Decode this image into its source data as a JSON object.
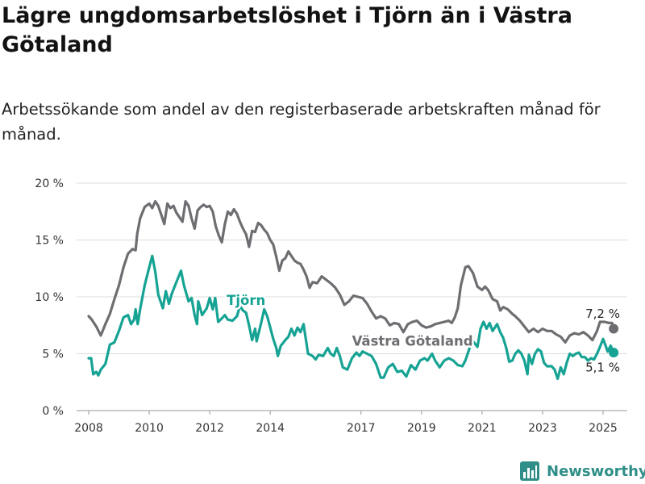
{
  "title": "Lägre ungdomsarbetslöshet i Tjörn än i Västra Götaland",
  "subtitle": "Arbetssökande som andel av den registerbaserade arbetskraften månad för månad.",
  "brand": "Newsworthy",
  "colors": {
    "Tjörn": "#16a394",
    "Västra Götaland": "#6e6e72",
    "grid": "#dcdcdc",
    "brand": "#2f8f88"
  },
  "chart_data": {
    "type": "line",
    "xlim": [
      2007.6,
      2025.8
    ],
    "ylim": [
      0,
      20
    ],
    "x_ticks": [
      2008,
      2010,
      2012,
      2014,
      2017,
      2019,
      2021,
      2023,
      2025
    ],
    "x_tick_labels": [
      "2008",
      "2010",
      "2012",
      "2014",
      "2017",
      "2019",
      "2021",
      "2023",
      "2025"
    ],
    "y_ticks": [
      0,
      5,
      10,
      15,
      20
    ],
    "y_tick_labels": [
      "0 %",
      "5 %",
      "10 %",
      "15 %",
      "20 %"
    ],
    "grid": "horizontal",
    "legend": "inline labels",
    "series": [
      {
        "name": "Västra Götaland",
        "end_label": "7,2 %",
        "points": [
          [
            2008.0,
            8.3
          ],
          [
            2008.1,
            8.0
          ],
          [
            2008.25,
            7.4
          ],
          [
            2008.4,
            6.6
          ],
          [
            2008.55,
            7.6
          ],
          [
            2008.7,
            8.5
          ],
          [
            2008.85,
            9.8
          ],
          [
            2009.0,
            11.0
          ],
          [
            2009.15,
            12.6
          ],
          [
            2009.3,
            13.8
          ],
          [
            2009.45,
            14.2
          ],
          [
            2009.55,
            14.1
          ],
          [
            2009.6,
            15.5
          ],
          [
            2009.7,
            16.9
          ],
          [
            2009.85,
            17.9
          ],
          [
            2010.0,
            18.2
          ],
          [
            2010.1,
            17.8
          ],
          [
            2010.2,
            18.4
          ],
          [
            2010.3,
            18.0
          ],
          [
            2010.4,
            17.2
          ],
          [
            2010.5,
            16.4
          ],
          [
            2010.6,
            18.2
          ],
          [
            2010.7,
            17.8
          ],
          [
            2010.8,
            18.0
          ],
          [
            2010.9,
            17.4
          ],
          [
            2011.0,
            17.0
          ],
          [
            2011.1,
            16.6
          ],
          [
            2011.2,
            18.4
          ],
          [
            2011.3,
            18.0
          ],
          [
            2011.4,
            16.9
          ],
          [
            2011.5,
            16.0
          ],
          [
            2011.6,
            17.6
          ],
          [
            2011.7,
            17.9
          ],
          [
            2011.8,
            18.1
          ],
          [
            2011.9,
            17.9
          ],
          [
            2012.0,
            18.0
          ],
          [
            2012.1,
            17.5
          ],
          [
            2012.2,
            16.2
          ],
          [
            2012.3,
            15.4
          ],
          [
            2012.4,
            14.8
          ],
          [
            2012.5,
            16.4
          ],
          [
            2012.6,
            17.5
          ],
          [
            2012.7,
            17.2
          ],
          [
            2012.8,
            17.7
          ],
          [
            2012.9,
            17.3
          ],
          [
            2013.0,
            16.6
          ],
          [
            2013.1,
            16.0
          ],
          [
            2013.2,
            15.5
          ],
          [
            2013.3,
            14.4
          ],
          [
            2013.4,
            15.8
          ],
          [
            2013.5,
            15.7
          ],
          [
            2013.6,
            16.5
          ],
          [
            2013.7,
            16.3
          ],
          [
            2013.8,
            15.9
          ],
          [
            2013.9,
            15.6
          ],
          [
            2014.0,
            15.0
          ],
          [
            2014.1,
            14.6
          ],
          [
            2014.2,
            13.5
          ],
          [
            2014.3,
            12.3
          ],
          [
            2014.4,
            13.2
          ],
          [
            2014.5,
            13.4
          ],
          [
            2014.6,
            14.0
          ],
          [
            2014.7,
            13.6
          ],
          [
            2014.8,
            13.2
          ],
          [
            2014.9,
            13.0
          ],
          [
            2015.0,
            12.9
          ],
          [
            2015.1,
            12.4
          ],
          [
            2015.2,
            11.8
          ],
          [
            2015.3,
            10.8
          ],
          [
            2015.4,
            11.3
          ],
          [
            2015.55,
            11.2
          ],
          [
            2015.7,
            11.8
          ],
          [
            2015.85,
            11.5
          ],
          [
            2016.0,
            11.2
          ],
          [
            2016.15,
            10.8
          ],
          [
            2016.3,
            10.2
          ],
          [
            2016.45,
            9.3
          ],
          [
            2016.6,
            9.6
          ],
          [
            2016.75,
            10.1
          ],
          [
            2016.9,
            10.0
          ],
          [
            2017.05,
            9.9
          ],
          [
            2017.2,
            9.4
          ],
          [
            2017.35,
            8.7
          ],
          [
            2017.5,
            8.1
          ],
          [
            2017.65,
            8.3
          ],
          [
            2017.8,
            8.1
          ],
          [
            2017.95,
            7.5
          ],
          [
            2018.1,
            7.7
          ],
          [
            2018.25,
            7.6
          ],
          [
            2018.4,
            6.9
          ],
          [
            2018.55,
            7.6
          ],
          [
            2018.7,
            7.8
          ],
          [
            2018.85,
            7.9
          ],
          [
            2019.0,
            7.5
          ],
          [
            2019.15,
            7.3
          ],
          [
            2019.3,
            7.4
          ],
          [
            2019.45,
            7.6
          ],
          [
            2019.6,
            7.7
          ],
          [
            2019.75,
            7.8
          ],
          [
            2019.9,
            7.9
          ],
          [
            2020.0,
            7.7
          ],
          [
            2020.1,
            8.2
          ],
          [
            2020.2,
            9.0
          ],
          [
            2020.3,
            11.0
          ],
          [
            2020.45,
            12.6
          ],
          [
            2020.55,
            12.7
          ],
          [
            2020.7,
            12.1
          ],
          [
            2020.85,
            10.9
          ],
          [
            2021.0,
            10.6
          ],
          [
            2021.1,
            10.9
          ],
          [
            2021.2,
            10.6
          ],
          [
            2021.35,
            9.8
          ],
          [
            2021.5,
            9.6
          ],
          [
            2021.6,
            8.8
          ],
          [
            2021.7,
            9.1
          ],
          [
            2021.85,
            8.9
          ],
          [
            2022.0,
            8.5
          ],
          [
            2022.1,
            8.3
          ],
          [
            2022.25,
            7.9
          ],
          [
            2022.4,
            7.4
          ],
          [
            2022.55,
            6.9
          ],
          [
            2022.7,
            7.2
          ],
          [
            2022.85,
            6.9
          ],
          [
            2023.0,
            7.2
          ],
          [
            2023.15,
            7.0
          ],
          [
            2023.3,
            7.0
          ],
          [
            2023.45,
            6.7
          ],
          [
            2023.6,
            6.5
          ],
          [
            2023.75,
            6.0
          ],
          [
            2023.9,
            6.6
          ],
          [
            2024.05,
            6.8
          ],
          [
            2024.2,
            6.7
          ],
          [
            2024.35,
            6.9
          ],
          [
            2024.5,
            6.6
          ],
          [
            2024.65,
            6.2
          ],
          [
            2024.8,
            7.0
          ],
          [
            2024.9,
            7.8
          ],
          [
            2025.05,
            7.8
          ],
          [
            2025.2,
            7.7
          ],
          [
            2025.3,
            7.7
          ],
          [
            2025.35,
            7.2
          ]
        ]
      },
      {
        "name": "Tjörn",
        "end_label": "5,1 %",
        "points": [
          [
            2008.0,
            4.6
          ],
          [
            2008.08,
            4.6
          ],
          [
            2008.15,
            3.2
          ],
          [
            2008.25,
            3.4
          ],
          [
            2008.32,
            3.1
          ],
          [
            2008.4,
            3.6
          ],
          [
            2008.55,
            4.1
          ],
          [
            2008.7,
            5.8
          ],
          [
            2008.85,
            6.0
          ],
          [
            2009.0,
            7.0
          ],
          [
            2009.15,
            8.2
          ],
          [
            2009.3,
            8.4
          ],
          [
            2009.4,
            7.6
          ],
          [
            2009.5,
            8.0
          ],
          [
            2009.55,
            8.9
          ],
          [
            2009.62,
            7.6
          ],
          [
            2009.7,
            8.9
          ],
          [
            2009.85,
            11.0
          ],
          [
            2010.0,
            12.6
          ],
          [
            2010.1,
            13.6
          ],
          [
            2010.2,
            12.2
          ],
          [
            2010.3,
            10.2
          ],
          [
            2010.45,
            9.0
          ],
          [
            2010.55,
            10.5
          ],
          [
            2010.65,
            9.4
          ],
          [
            2010.75,
            10.3
          ],
          [
            2010.9,
            11.3
          ],
          [
            2011.05,
            12.3
          ],
          [
            2011.15,
            11.0
          ],
          [
            2011.3,
            9.6
          ],
          [
            2011.4,
            9.9
          ],
          [
            2011.5,
            8.4
          ],
          [
            2011.58,
            7.6
          ],
          [
            2011.62,
            9.6
          ],
          [
            2011.75,
            8.4
          ],
          [
            2011.9,
            9.0
          ],
          [
            2012.0,
            9.9
          ],
          [
            2012.1,
            8.9
          ],
          [
            2012.18,
            9.9
          ],
          [
            2012.28,
            7.8
          ],
          [
            2012.4,
            8.1
          ],
          [
            2012.5,
            8.4
          ],
          [
            2012.6,
            8.0
          ],
          [
            2012.75,
            7.9
          ],
          [
            2012.9,
            8.3
          ],
          [
            2013.0,
            9.2
          ],
          [
            2013.1,
            8.8
          ],
          [
            2013.2,
            8.6
          ],
          [
            2013.3,
            7.5
          ],
          [
            2013.4,
            6.2
          ],
          [
            2013.5,
            7.2
          ],
          [
            2013.55,
            6.1
          ],
          [
            2013.7,
            7.7
          ],
          [
            2013.8,
            8.9
          ],
          [
            2013.9,
            8.3
          ],
          [
            2014.0,
            7.3
          ],
          [
            2014.1,
            6.3
          ],
          [
            2014.2,
            5.5
          ],
          [
            2014.25,
            4.8
          ],
          [
            2014.35,
            5.7
          ],
          [
            2014.5,
            6.2
          ],
          [
            2014.6,
            6.5
          ],
          [
            2014.7,
            7.2
          ],
          [
            2014.8,
            6.6
          ],
          [
            2014.9,
            7.3
          ],
          [
            2015.0,
            6.9
          ],
          [
            2015.1,
            7.6
          ],
          [
            2015.25,
            5.0
          ],
          [
            2015.4,
            4.8
          ],
          [
            2015.5,
            4.5
          ],
          [
            2015.6,
            4.9
          ],
          [
            2015.75,
            4.8
          ],
          [
            2015.9,
            5.5
          ],
          [
            2016.0,
            5.0
          ],
          [
            2016.1,
            4.8
          ],
          [
            2016.2,
            5.5
          ],
          [
            2016.3,
            4.8
          ],
          [
            2016.4,
            3.8
          ],
          [
            2016.55,
            3.6
          ],
          [
            2016.7,
            4.6
          ],
          [
            2016.85,
            5.1
          ],
          [
            2016.95,
            4.8
          ],
          [
            2017.05,
            5.2
          ],
          [
            2017.2,
            5.0
          ],
          [
            2017.35,
            4.8
          ],
          [
            2017.5,
            4.1
          ],
          [
            2017.65,
            2.9
          ],
          [
            2017.75,
            2.9
          ],
          [
            2017.9,
            3.8
          ],
          [
            2018.05,
            4.1
          ],
          [
            2018.2,
            3.4
          ],
          [
            2018.35,
            3.5
          ],
          [
            2018.5,
            3.0
          ],
          [
            2018.65,
            4.0
          ],
          [
            2018.8,
            3.6
          ],
          [
            2018.95,
            4.4
          ],
          [
            2019.1,
            4.6
          ],
          [
            2019.2,
            4.4
          ],
          [
            2019.35,
            5.0
          ],
          [
            2019.45,
            4.4
          ],
          [
            2019.6,
            3.8
          ],
          [
            2019.75,
            4.4
          ],
          [
            2019.9,
            4.6
          ],
          [
            2020.05,
            4.4
          ],
          [
            2020.2,
            4.0
          ],
          [
            2020.35,
            3.9
          ],
          [
            2020.45,
            4.4
          ],
          [
            2020.6,
            5.6
          ],
          [
            2020.7,
            6.1
          ],
          [
            2020.85,
            5.6
          ],
          [
            2020.95,
            7.2
          ],
          [
            2021.05,
            7.8
          ],
          [
            2021.15,
            7.2
          ],
          [
            2021.25,
            7.7
          ],
          [
            2021.35,
            7.0
          ],
          [
            2021.5,
            7.6
          ],
          [
            2021.6,
            6.9
          ],
          [
            2021.7,
            6.4
          ],
          [
            2021.8,
            5.5
          ],
          [
            2021.9,
            4.3
          ],
          [
            2022.0,
            4.4
          ],
          [
            2022.1,
            5.0
          ],
          [
            2022.2,
            5.3
          ],
          [
            2022.3,
            5.0
          ],
          [
            2022.4,
            4.4
          ],
          [
            2022.5,
            3.2
          ],
          [
            2022.55,
            4.9
          ],
          [
            2022.65,
            4.1
          ],
          [
            2022.75,
            5.0
          ],
          [
            2022.85,
            5.4
          ],
          [
            2022.95,
            5.2
          ],
          [
            2023.05,
            4.2
          ],
          [
            2023.15,
            3.9
          ],
          [
            2023.3,
            3.9
          ],
          [
            2023.4,
            3.6
          ],
          [
            2023.5,
            2.8
          ],
          [
            2023.6,
            3.8
          ],
          [
            2023.7,
            3.2
          ],
          [
            2023.8,
            4.2
          ],
          [
            2023.9,
            5.0
          ],
          [
            2024.0,
            4.8
          ],
          [
            2024.1,
            5.0
          ],
          [
            2024.2,
            5.1
          ],
          [
            2024.3,
            4.7
          ],
          [
            2024.4,
            4.7
          ],
          [
            2024.5,
            4.4
          ],
          [
            2024.6,
            4.6
          ],
          [
            2024.7,
            4.5
          ],
          [
            2024.8,
            5.0
          ],
          [
            2024.9,
            5.6
          ],
          [
            2025.0,
            6.3
          ],
          [
            2025.1,
            5.6
          ],
          [
            2025.15,
            5.2
          ],
          [
            2025.25,
            5.7
          ],
          [
            2025.3,
            5.4
          ],
          [
            2025.35,
            5.1
          ]
        ]
      }
    ]
  }
}
